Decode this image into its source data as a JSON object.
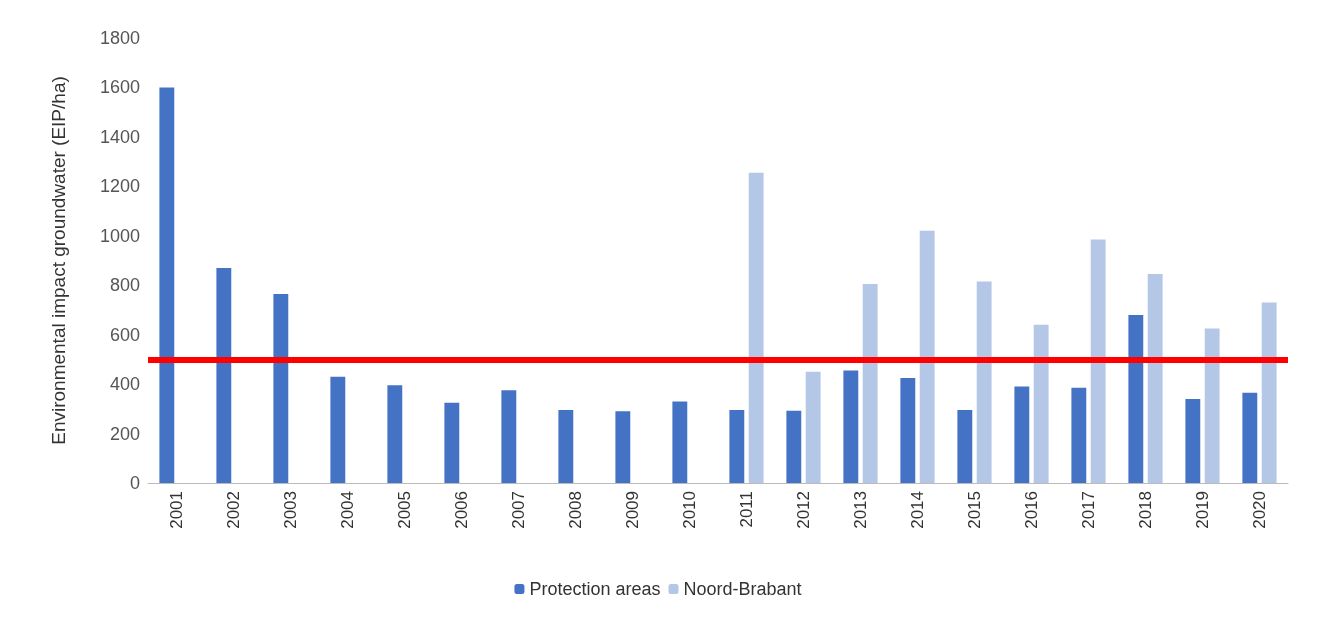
{
  "chart_data": {
    "type": "bar",
    "ylabel": "Environmental impact groundwater (EIP/ha)",
    "categories": [
      "2001",
      "2002",
      "2003",
      "2004",
      "2005",
      "2006",
      "2007",
      "2008",
      "2009",
      "2010",
      "2011",
      "2012",
      "2013",
      "2014",
      "2015",
      "2016",
      "2017",
      "2018",
      "2019",
      "2020"
    ],
    "series": [
      {
        "name": "Protection areas",
        "color": "#4472c4",
        "values": [
          1600,
          870,
          765,
          430,
          395,
          325,
          375,
          295,
          290,
          330,
          295,
          292,
          455,
          425,
          295,
          390,
          385,
          680,
          340,
          365
        ]
      },
      {
        "name": "Noord-Brabant",
        "color": "#b4c7e7",
        "values": [
          null,
          null,
          null,
          null,
          null,
          null,
          null,
          null,
          null,
          null,
          1255,
          450,
          805,
          1020,
          815,
          640,
          985,
          845,
          625,
          730
        ]
      }
    ],
    "ylim": [
      0,
      1800
    ],
    "yticks": [
      0,
      200,
      400,
      600,
      800,
      1000,
      1200,
      1400,
      1600,
      1800
    ],
    "ref_lines": [
      {
        "axis": "y",
        "value": 500,
        "color": "#ff0000",
        "line_style": "solid"
      }
    ],
    "grid": false,
    "legend": "bottom"
  }
}
